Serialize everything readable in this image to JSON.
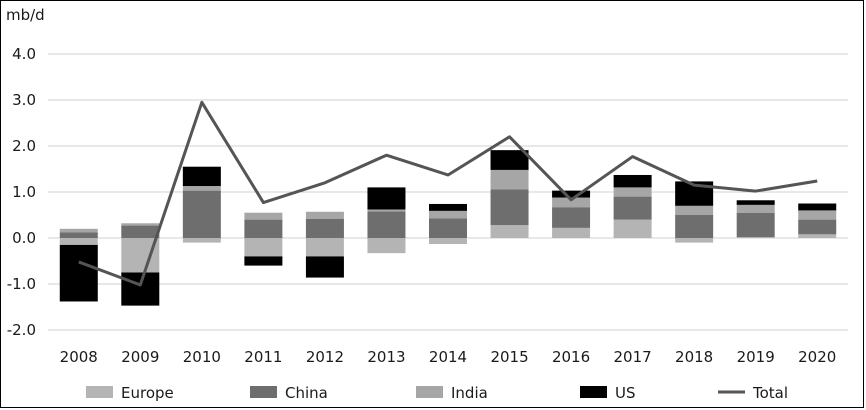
{
  "chart_data": {
    "type": "bar",
    "stacked": true,
    "unit_label": "mb/d",
    "title": "",
    "xlabel": "",
    "ylabel": "",
    "ylim": [
      -2.0,
      4.0
    ],
    "yticks": [
      "4.0",
      "3.0",
      "2.0",
      "1.0",
      "0.0",
      "-1.0",
      "-2.0"
    ],
    "ytick_values": [
      4.0,
      3.0,
      2.0,
      1.0,
      0.0,
      -1.0,
      -2.0
    ],
    "grid": "horizontal",
    "legend_position": "bottom",
    "categories": [
      "2008",
      "2009",
      "2010",
      "2011",
      "2012",
      "2013",
      "2014",
      "2015",
      "2016",
      "2017",
      "2018",
      "2019",
      "2020"
    ],
    "series": [
      {
        "name": "Europe",
        "kind": "bar",
        "color": "#b4b4b4",
        "values": [
          -0.15,
          -0.75,
          -0.1,
          -0.4,
          -0.4,
          -0.33,
          -0.13,
          0.28,
          0.22,
          0.4,
          -0.1,
          0.02,
          0.08
        ]
      },
      {
        "name": "China",
        "kind": "bar",
        "color": "#6e6e6e",
        "values": [
          0.12,
          0.27,
          1.03,
          0.4,
          0.42,
          0.58,
          0.43,
          0.78,
          0.45,
          0.5,
          0.5,
          0.53,
          0.32
        ]
      },
      {
        "name": "India",
        "kind": "bar",
        "color": "#a6a6a6",
        "values": [
          0.08,
          0.05,
          0.1,
          0.15,
          0.15,
          0.04,
          0.16,
          0.42,
          0.21,
          0.2,
          0.2,
          0.17,
          0.2
        ]
      },
      {
        "name": "US",
        "kind": "bar",
        "color": "#000000",
        "values": [
          -1.23,
          -0.72,
          0.42,
          -0.2,
          -0.46,
          0.48,
          0.15,
          0.43,
          0.15,
          0.27,
          0.53,
          0.1,
          0.15
        ]
      },
      {
        "name": "Total",
        "kind": "line",
        "color": "#555555",
        "values": [
          -0.52,
          -1.02,
          2.95,
          0.77,
          1.2,
          1.8,
          1.37,
          2.2,
          0.83,
          1.77,
          1.15,
          1.02,
          1.24
        ]
      }
    ]
  }
}
